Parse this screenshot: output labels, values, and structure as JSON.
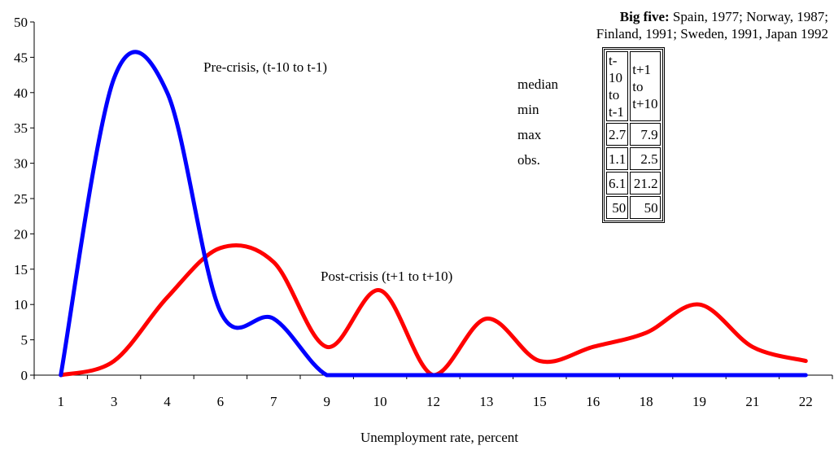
{
  "chart_data": {
    "type": "line",
    "xlabel": "Unemployment rate, percent",
    "categories": [
      "1",
      "3",
      "4",
      "6",
      "7",
      "9",
      "10",
      "12",
      "13",
      "15",
      "16",
      "18",
      "19",
      "21",
      "22"
    ],
    "ylim": [
      0,
      50
    ],
    "yticks": [
      0,
      5,
      10,
      15,
      20,
      25,
      30,
      35,
      40,
      45,
      50
    ],
    "grid": false,
    "series": [
      {
        "name": "Pre-crisis, (t-10 to t-1)",
        "color": "#0000ff",
        "values": [
          0,
          42,
          40,
          9,
          8,
          0,
          0,
          0,
          0,
          0,
          0,
          0,
          0,
          0,
          0
        ]
      },
      {
        "name": "Post-crisis (t+1 to t+10)",
        "color": "#ff0000",
        "values": [
          0,
          2,
          11,
          18,
          16,
          4,
          12,
          0,
          8,
          2,
          4,
          6,
          10,
          4,
          2
        ]
      }
    ],
    "annotations": [
      {
        "text": "Pre-crisis, (t-10 to t-1)",
        "series": 0
      },
      {
        "text": "Post-crisis (t+1 to t+10)",
        "series": 1
      }
    ]
  },
  "info_box": {
    "title_bold": "Big five:",
    "title_line1": "Spain, 1977; Norway, 1987;",
    "title_line2": "Finland, 1991; Sweden, 1991, Japan 1992",
    "columns": [
      "t-10 to t-1",
      "t+1 to t+10"
    ],
    "rows": [
      {
        "label": "median",
        "values": [
          "2.7",
          "7.9"
        ]
      },
      {
        "label": "min",
        "values": [
          "1.1",
          "2.5"
        ]
      },
      {
        "label": "max",
        "values": [
          "6.1",
          "21.2"
        ]
      },
      {
        "label": "obs.",
        "values": [
          "50",
          "50"
        ]
      }
    ]
  }
}
